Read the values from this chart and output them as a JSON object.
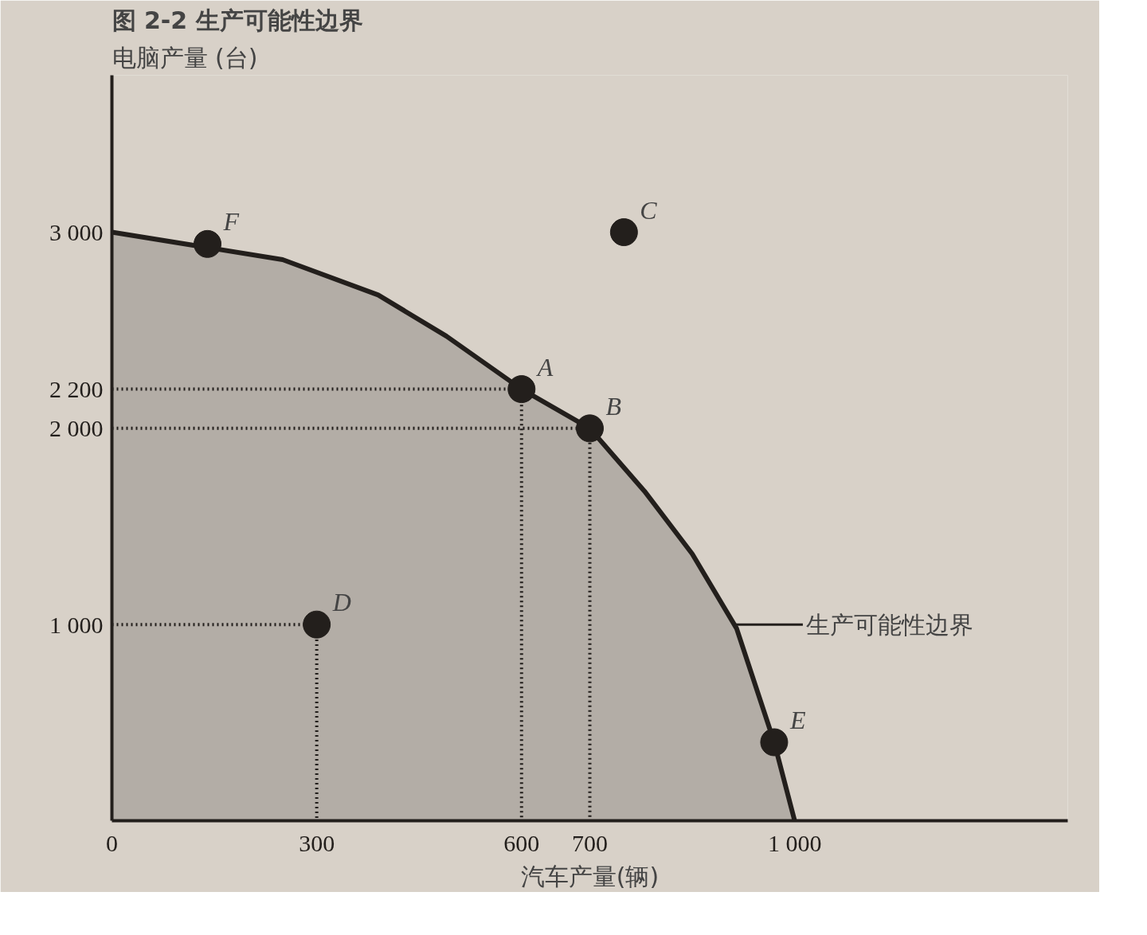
{
  "chart_data": {
    "type": "line",
    "title": "图 2-2 生产可能性边界",
    "xlabel": "汽车产量(辆)",
    "ylabel": "电脑产量 (台)",
    "xlim": [
      0,
      1400
    ],
    "ylim": [
      0,
      3800
    ],
    "xticks": [
      0,
      300,
      600,
      700,
      {
        "value": 1000,
        "label": "1 000"
      }
    ],
    "yticks": [
      {
        "value": 1000,
        "label": "1 000"
      },
      {
        "value": 2000,
        "label": "2 000"
      },
      {
        "value": 2200,
        "label": "2 200"
      },
      {
        "value": 3000,
        "label": "3 000"
      }
    ],
    "grid": false,
    "series": [
      {
        "type": "area",
        "marker": "none",
        "color": "#231f1c",
        "x": [
          0,
          250,
          390,
          490,
          600,
          700,
          780,
          850,
          915,
          970,
          1000
        ],
        "values": [
          3000,
          2860,
          2680,
          2470,
          2200,
          2000,
          1680,
          1360,
          980,
          400,
          0
        ]
      },
      {
        "marker": "none",
        "line_style": "dotted",
        "color": "#231f1c",
        "x": [
          0,
          600,
          600
        ],
        "values": [
          2200,
          2200,
          0
        ]
      },
      {
        "marker": "none",
        "line_style": "dotted",
        "color": "#231f1c",
        "x": [
          0,
          700,
          700
        ],
        "values": [
          2000,
          2000,
          0
        ]
      },
      {
        "marker": "none",
        "line_style": "dotted",
        "color": "#231f1c",
        "x": [
          0,
          300,
          300
        ],
        "values": [
          1000,
          1000,
          0
        ]
      },
      {
        "type": "scatter",
        "marker": "circle",
        "color": "#231f1c",
        "x": [
          600,
          700,
          750,
          300,
          970,
          140
        ],
        "values": [
          2200,
          2000,
          3000,
          1000,
          400,
          2940
        ]
      }
    ],
    "annotations": [
      {
        "text": "A",
        "x": 600,
        "y": 2200
      },
      {
        "text": "B",
        "x": 700,
        "y": 2000
      },
      {
        "text": "C",
        "x": 750,
        "y": 3000
      },
      {
        "text": "D",
        "x": 300,
        "y": 1000
      },
      {
        "text": "E",
        "x": 970,
        "y": 400
      },
      {
        "text": "F",
        "x": 140,
        "y": 2940
      },
      {
        "text": "生产可能性边界",
        "x": 912,
        "y": 1000
      }
    ]
  }
}
